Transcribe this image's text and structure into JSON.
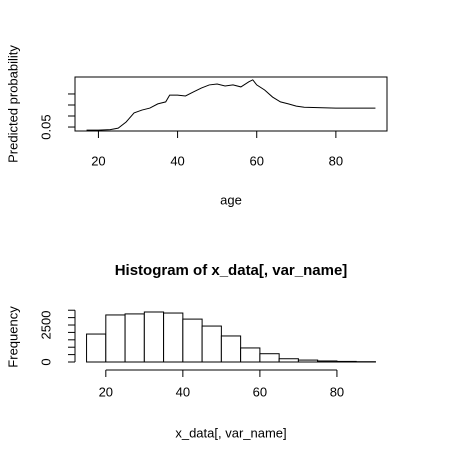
{
  "chart_data": [
    {
      "type": "line",
      "x_label": "age",
      "y_label": "Predicted probability",
      "x": [
        17,
        20,
        23,
        25,
        27,
        29,
        31,
        33,
        35,
        37,
        38,
        40,
        42,
        44,
        46,
        48,
        50,
        52,
        54,
        56,
        58,
        59,
        60,
        62,
        64,
        66,
        68,
        70,
        72,
        80,
        90
      ],
      "values": [
        0.036,
        0.036,
        0.038,
        0.045,
        0.073,
        0.114,
        0.127,
        0.136,
        0.155,
        0.164,
        0.195,
        0.195,
        0.191,
        0.209,
        0.227,
        0.241,
        0.245,
        0.236,
        0.241,
        0.232,
        0.255,
        0.264,
        0.241,
        0.218,
        0.186,
        0.164,
        0.155,
        0.145,
        0.14,
        0.136,
        0.136
      ],
      "color": "#000000",
      "xlim": [
        14.08,
        92.92
      ],
      "xticks": [
        20,
        40,
        60,
        80
      ],
      "ylim": [
        0.032,
        0.277
      ],
      "yticks": [
        0.05,
        {
          "value": 0.1,
          "label": null
        },
        {
          "value": 0.15,
          "label": null
        },
        {
          "value": 0.2,
          "label": null
        }
      ],
      "box": true
    },
    {
      "type": "histogram",
      "title": "Histogram of x_data[, var_name]",
      "x_label": "x_data[, var_name]",
      "y_label": "Frequency",
      "bins": [
        15,
        20,
        25,
        30,
        35,
        40,
        45,
        50,
        55,
        60,
        65,
        70,
        75,
        80,
        85,
        90
      ],
      "values": [
        1890,
        3180,
        3250,
        3380,
        3310,
        2900,
        2430,
        1760,
        950,
        560,
        220,
        130,
        70,
        40,
        20
      ],
      "color": "#ffffff",
      "xlim": [
        12,
        93
      ],
      "xticks": [
        20,
        40,
        60,
        80
      ],
      "ylim": [
        -135,
        3515
      ],
      "yticks": [
        0,
        {
          "value": 500,
          "label": null
        },
        {
          "value": 1000,
          "label": null
        },
        {
          "value": 1500,
          "label": null
        },
        {
          "value": 2000,
          "label": null
        },
        2500,
        {
          "value": 3000,
          "label": null
        },
        {
          "value": 3500,
          "label": null
        }
      ],
      "box": false
    }
  ]
}
